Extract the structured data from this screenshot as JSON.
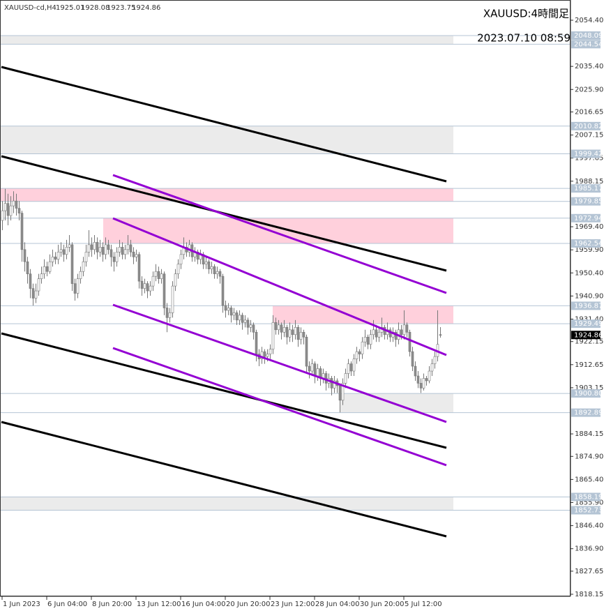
{
  "chart_data": {
    "type": "candlestick",
    "title": "XAUUSD:4時間足",
    "symbol": "XAUUSD-cd,H4",
    "timestamp": "2023.07.10 08:59",
    "ylim": [
      1817.29,
      2062.72
    ],
    "yticks": [
      {
        "value": 2054.4,
        "label": "2054.40"
      },
      {
        "value": 2035.4,
        "label": "2035.40"
      },
      {
        "value": 2025.9,
        "label": "2025.90"
      },
      2016.65,
      2007.15,
      1997.65,
      1988.15,
      {
        "value": 1969.4,
        "label": "1969.40"
      },
      {
        "value": 1959.9,
        "label": "1959.90"
      },
      {
        "value": 1950.4,
        "label": "1950.40"
      },
      {
        "value": 1940.9,
        "label": "1940.90"
      },
      {
        "value": 1931.4,
        "label": "1931.40"
      },
      1922.15,
      1912.65,
      1903.15,
      1884.15,
      {
        "value": 1874.9,
        "label": "1874.90"
      },
      {
        "value": 1865.4,
        "label": "1865.40"
      },
      {
        "value": 1855.9,
        "label": "1855.90"
      },
      {
        "value": 1846.4,
        "label": "1846.40"
      },
      {
        "value": 1836.9,
        "label": "1836.90"
      },
      1827.65,
      1818.15
    ],
    "xticks": [
      {
        "value": 0,
        "label": "1 Jun 2023"
      },
      {
        "value": 16,
        "label": "6 Jun 04:00"
      },
      {
        "value": 32,
        "label": "8 Jun 20:00"
      },
      {
        "value": 48,
        "label": "13 Jun 12:00"
      },
      {
        "value": 64,
        "label": "16 Jun 04:00"
      },
      {
        "value": 80,
        "label": "20 Jun 20:00"
      },
      {
        "value": 96,
        "label": "23 Jun 12:00"
      },
      {
        "value": 112,
        "label": "28 Jun 04:00"
      },
      {
        "value": 128,
        "label": "30 Jun 20:00"
      },
      {
        "value": 144,
        "label": "5 Jul 12:00"
      }
    ],
    "levels": [
      2048.09,
      2044.54,
      2010.82,
      1999.42,
      1985.17,
      1979.85,
      1972.94,
      1962.54,
      1936.87,
      1929.49,
      {
        "value": 1900.8,
        "label": "1900.80"
      },
      1892.89,
      1858.19,
      1852.73
    ],
    "up_color": "#ffffff",
    "down_color": "#8c8c8c",
    "wick_color": "#777777",
    "ohlc": [
      [
        1972,
        1980,
        1968,
        1976
      ],
      [
        1976,
        1985,
        1972,
        1979
      ],
      [
        1979,
        1983,
        1970,
        1974
      ],
      [
        1974,
        1982,
        1972,
        1978
      ],
      [
        1978,
        1984,
        1975,
        1980
      ],
      [
        1980,
        1983,
        1974,
        1977
      ],
      [
        1977,
        1980,
        1972,
        1975
      ],
      [
        1975,
        1976,
        1955,
        1960
      ],
      [
        1960,
        1963,
        1951,
        1955
      ],
      [
        1955,
        1957,
        1946,
        1950
      ],
      [
        1950,
        1952,
        1940,
        1944
      ],
      [
        1944,
        1946,
        1937,
        1940
      ],
      [
        1940,
        1946,
        1938,
        1943
      ],
      [
        1943,
        1950,
        1941,
        1948
      ],
      [
        1948,
        1953,
        1946,
        1950
      ],
      [
        1950,
        1956,
        1948,
        1953
      ],
      [
        1953,
        1955,
        1949,
        1951
      ],
      [
        1951,
        1958,
        1950,
        1955
      ],
      [
        1955,
        1960,
        1953,
        1957
      ],
      [
        1957,
        1959,
        1954,
        1956
      ],
      [
        1956,
        1962,
        1954,
        1959
      ],
      [
        1959,
        1963,
        1957,
        1960
      ],
      [
        1960,
        1962,
        1955,
        1958
      ],
      [
        1958,
        1964,
        1956,
        1961
      ],
      [
        1961,
        1966,
        1959,
        1962
      ],
      [
        1962,
        1963,
        1943,
        1946
      ],
      [
        1946,
        1948,
        1939,
        1942
      ],
      [
        1942,
        1950,
        1940,
        1948
      ],
      [
        1948,
        1953,
        1946,
        1951
      ],
      [
        1951,
        1957,
        1949,
        1955
      ],
      [
        1955,
        1962,
        1953,
        1959
      ],
      [
        1959,
        1968,
        1957,
        1962
      ],
      [
        1962,
        1965,
        1957,
        1960
      ],
      [
        1960,
        1966,
        1958,
        1963
      ],
      [
        1963,
        1965,
        1956,
        1959
      ],
      [
        1959,
        1964,
        1957,
        1961
      ],
      [
        1961,
        1963,
        1955,
        1958
      ],
      [
        1958,
        1965,
        1956,
        1962
      ],
      [
        1962,
        1964,
        1958,
        1960
      ],
      [
        1960,
        1962,
        1953,
        1957
      ],
      [
        1957,
        1959,
        1951,
        1955
      ],
      [
        1955,
        1961,
        1953,
        1959
      ],
      [
        1959,
        1964,
        1957,
        1961
      ],
      [
        1961,
        1963,
        1956,
        1958
      ],
      [
        1958,
        1962,
        1956,
        1960
      ],
      [
        1960,
        1966,
        1958,
        1962
      ],
      [
        1962,
        1964,
        1957,
        1959
      ],
      [
        1959,
        1961,
        1954,
        1957
      ],
      [
        1957,
        1960,
        1955,
        1958
      ],
      [
        1958,
        1959,
        1944,
        1947
      ],
      [
        1947,
        1949,
        1941,
        1944
      ],
      [
        1944,
        1948,
        1942,
        1946
      ],
      [
        1946,
        1947,
        1940,
        1943
      ],
      [
        1943,
        1947,
        1941,
        1945
      ],
      [
        1945,
        1951,
        1943,
        1949
      ],
      [
        1949,
        1954,
        1947,
        1951
      ],
      [
        1951,
        1953,
        1946,
        1948
      ],
      [
        1948,
        1952,
        1946,
        1950
      ],
      [
        1950,
        1951,
        1933,
        1936
      ],
      [
        1936,
        1938,
        1926,
        1932
      ],
      [
        1932,
        1936,
        1930,
        1934
      ],
      [
        1934,
        1947,
        1932,
        1945
      ],
      [
        1945,
        1952,
        1943,
        1950
      ],
      [
        1950,
        1956,
        1948,
        1954
      ],
      [
        1954,
        1960,
        1952,
        1958
      ],
      [
        1958,
        1965,
        1956,
        1961
      ],
      [
        1961,
        1963,
        1957,
        1959
      ],
      [
        1959,
        1964,
        1957,
        1962
      ],
      [
        1962,
        1963,
        1955,
        1957
      ],
      [
        1957,
        1961,
        1955,
        1959
      ],
      [
        1959,
        1960,
        1954,
        1956
      ],
      [
        1956,
        1960,
        1954,
        1958
      ],
      [
        1958,
        1959,
        1952,
        1954
      ],
      [
        1954,
        1957,
        1952,
        1955
      ],
      [
        1955,
        1956,
        1950,
        1952
      ],
      [
        1952,
        1955,
        1950,
        1953
      ],
      [
        1953,
        1954,
        1948,
        1950
      ],
      [
        1950,
        1953,
        1948,
        1951
      ],
      [
        1951,
        1952,
        1946,
        1949
      ],
      [
        1949,
        1950,
        1934,
        1937
      ],
      [
        1937,
        1939,
        1932,
        1935
      ],
      [
        1935,
        1938,
        1933,
        1936
      ],
      [
        1936,
        1937,
        1930,
        1933
      ],
      [
        1933,
        1936,
        1931,
        1934
      ],
      [
        1934,
        1935,
        1929,
        1931
      ],
      [
        1931,
        1935,
        1929,
        1933
      ],
      [
        1933,
        1934,
        1927,
        1930
      ],
      [
        1930,
        1933,
        1928,
        1931
      ],
      [
        1931,
        1932,
        1925,
        1928
      ],
      [
        1928,
        1931,
        1926,
        1929
      ],
      [
        1929,
        1930,
        1923,
        1926
      ],
      [
        1926,
        1927,
        1914,
        1917
      ],
      [
        1917,
        1919,
        1912,
        1915
      ],
      [
        1915,
        1920,
        1913,
        1918
      ],
      [
        1918,
        1919,
        1913,
        1916
      ],
      [
        1916,
        1919,
        1914,
        1917
      ],
      [
        1917,
        1921,
        1915,
        1919
      ],
      [
        1919,
        1933,
        1917,
        1930
      ],
      [
        1930,
        1932,
        1925,
        1927
      ],
      [
        1927,
        1931,
        1925,
        1929
      ],
      [
        1929,
        1930,
        1923,
        1926
      ],
      [
        1926,
        1931,
        1924,
        1928
      ],
      [
        1928,
        1929,
        1921,
        1924
      ],
      [
        1924,
        1930,
        1922,
        1927
      ],
      [
        1927,
        1929,
        1922,
        1925
      ],
      [
        1925,
        1931,
        1923,
        1928
      ],
      [
        1928,
        1929,
        1920,
        1923
      ],
      [
        1923,
        1928,
        1921,
        1926
      ],
      [
        1926,
        1927,
        1921,
        1924
      ],
      [
        1924,
        1925,
        1909,
        1912
      ],
      [
        1912,
        1914,
        1907,
        1910
      ],
      [
        1910,
        1915,
        1908,
        1913
      ],
      [
        1913,
        1914,
        1905,
        1908
      ],
      [
        1908,
        1913,
        1906,
        1911
      ],
      [
        1911,
        1912,
        1904,
        1907
      ],
      [
        1907,
        1911,
        1905,
        1909
      ],
      [
        1909,
        1910,
        1902,
        1905
      ],
      [
        1905,
        1909,
        1903,
        1907
      ],
      [
        1907,
        1908,
        1900,
        1903
      ],
      [
        1903,
        1908,
        1901,
        1906
      ],
      [
        1906,
        1907,
        1901,
        1904
      ],
      [
        1904,
        1905,
        1893,
        1898
      ],
      [
        1898,
        1907,
        1896,
        1905
      ],
      [
        1905,
        1911,
        1903,
        1909
      ],
      [
        1909,
        1915,
        1907,
        1913
      ],
      [
        1913,
        1914,
        1908,
        1910
      ],
      [
        1910,
        1917,
        1908,
        1915
      ],
      [
        1915,
        1920,
        1913,
        1918
      ],
      [
        1918,
        1919,
        1914,
        1917
      ],
      [
        1917,
        1924,
        1915,
        1922
      ],
      [
        1922,
        1927,
        1920,
        1924
      ],
      [
        1924,
        1925,
        1919,
        1921
      ],
      [
        1921,
        1927,
        1919,
        1925
      ],
      [
        1925,
        1931,
        1923,
        1927
      ],
      [
        1927,
        1929,
        1922,
        1924
      ],
      [
        1924,
        1928,
        1922,
        1926
      ],
      [
        1926,
        1932,
        1924,
        1928
      ],
      [
        1928,
        1929,
        1923,
        1925
      ],
      [
        1925,
        1930,
        1923,
        1927
      ],
      [
        1927,
        1928,
        1922,
        1924
      ],
      [
        1924,
        1928,
        1922,
        1926
      ],
      [
        1926,
        1927,
        1920,
        1923
      ],
      [
        1923,
        1930,
        1921,
        1927
      ],
      [
        1927,
        1929,
        1923,
        1925
      ],
      [
        1925,
        1935,
        1923,
        1929
      ],
      [
        1929,
        1930,
        1924,
        1926
      ],
      [
        1926,
        1927,
        1916,
        1918
      ],
      [
        1918,
        1920,
        1910,
        1912
      ],
      [
        1912,
        1914,
        1906,
        1908
      ],
      [
        1908,
        1910,
        1903,
        1905
      ],
      [
        1905,
        1907,
        1901,
        1903
      ],
      [
        1903,
        1909,
        1902,
        1907
      ],
      [
        1907,
        1908,
        1904,
        1906
      ],
      [
        1906,
        1912,
        1905,
        1910
      ],
      [
        1910,
        1915,
        1908,
        1913
      ],
      [
        1913,
        1918,
        1911,
        1916
      ],
      [
        1916,
        1935,
        1914,
        1921
      ],
      [
        1925.01,
        1928.08,
        1923.75,
        1924.86
      ]
    ]
  }
}
